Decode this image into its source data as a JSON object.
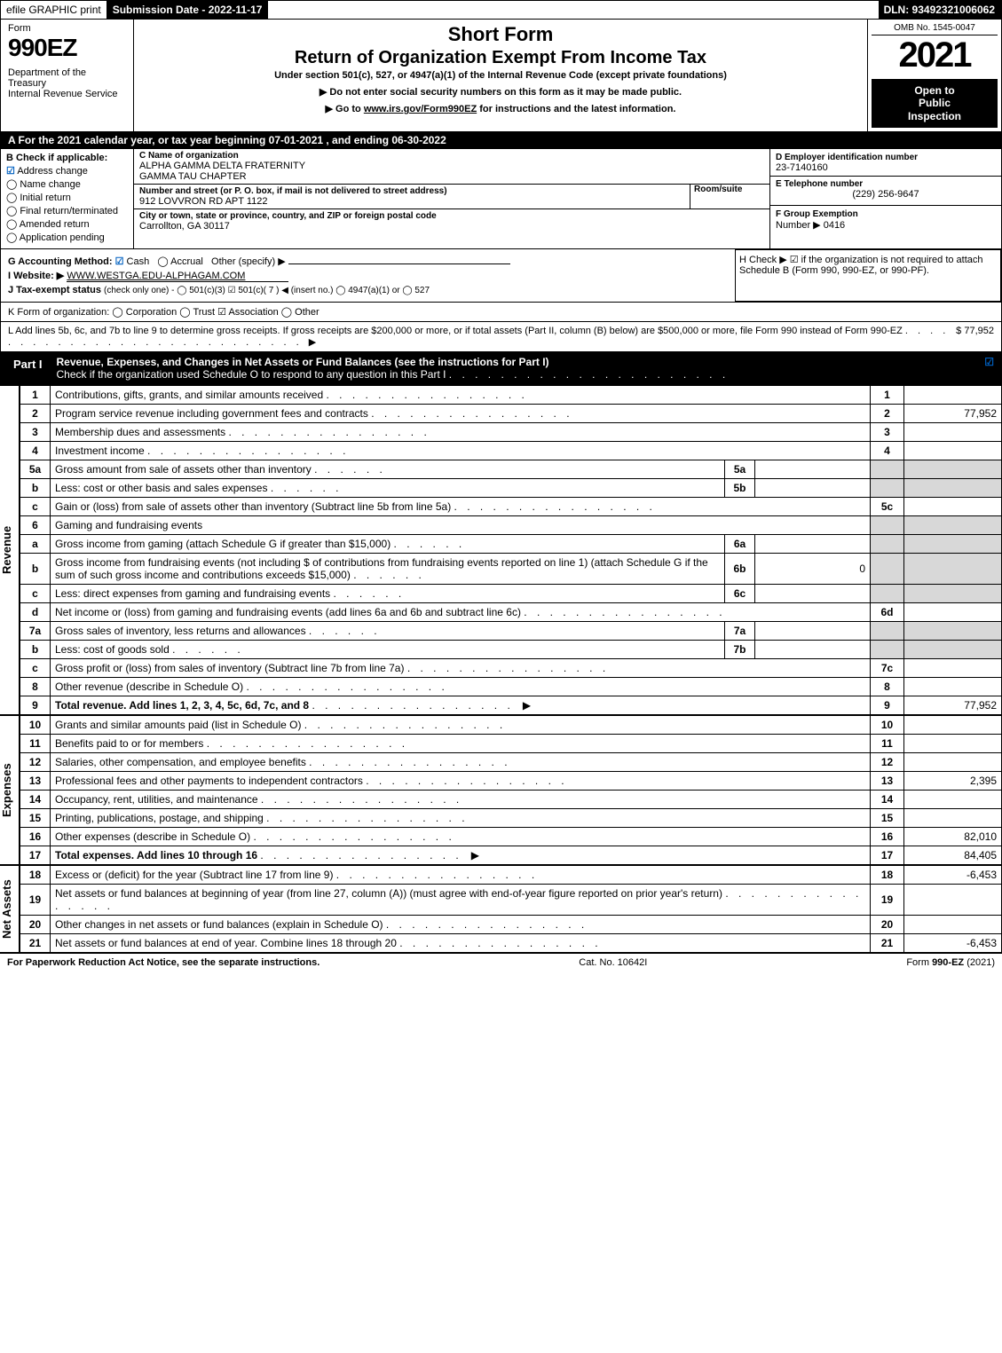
{
  "colors": {
    "black": "#000000",
    "white": "#ffffff",
    "grey_fill": "#d8d8d8",
    "check_blue": "#0060c0"
  },
  "topbar": {
    "efile": "efile GRAPHIC print",
    "submission": "Submission Date - 2022-11-17",
    "dln": "DLN: 93492321006062"
  },
  "header": {
    "form_word": "Form",
    "form_number": "990EZ",
    "dept": "Department of the Treasury\nInternal Revenue Service",
    "short_form": "Short Form",
    "return_title": "Return of Organization Exempt From Income Tax",
    "subtitle": "Under section 501(c), 527, or 4947(a)(1) of the Internal Revenue Code (except private foundations)",
    "notice1": "▶ Do not enter social security numbers on this form as it may be made public.",
    "notice2_pre": "▶ Go to ",
    "notice2_link": "www.irs.gov/Form990EZ",
    "notice2_post": " for instructions and the latest information.",
    "omb": "OMB No. 1545-0047",
    "year": "2021",
    "inspection": "Open to\nPublic\nInspection"
  },
  "rowA": {
    "text": "A  For the 2021 calendar year, or tax year beginning 07-01-2021 , and ending 06-30-2022"
  },
  "colB": {
    "header": "B  Check if applicable:",
    "items": [
      {
        "label": "Address change",
        "checked": true
      },
      {
        "label": "Name change",
        "checked": false
      },
      {
        "label": "Initial return",
        "checked": false
      },
      {
        "label": "Final return/terminated",
        "checked": false
      },
      {
        "label": "Amended return",
        "checked": false
      },
      {
        "label": "Application pending",
        "checked": false
      }
    ]
  },
  "colC": {
    "name_label": "C Name of organization",
    "name1": "ALPHA GAMMA DELTA FRATERNITY",
    "name2": "GAMMA TAU CHAPTER",
    "street_label": "Number and street (or P. O. box, if mail is not delivered to street address)",
    "room_label": "Room/suite",
    "street": "912 LOVVRON RD APT 1122",
    "city_label": "City or town, state or province, country, and ZIP or foreign postal code",
    "city": "Carrollton, GA  30117"
  },
  "colD": {
    "ein_label": "D Employer identification number",
    "ein": "23-7140160",
    "phone_label": "E Telephone number",
    "phone": "(229) 256-9647",
    "group_label": "F Group Exemption",
    "group_label2": "Number  ▶",
    "group": "0416"
  },
  "meta": {
    "g_label": "G Accounting Method:",
    "g_cash": "Cash",
    "g_accrual": "Accrual",
    "g_other": "Other (specify) ▶",
    "h_text": "H  Check ▶ ☑ if the organization is not required to attach Schedule B (Form 990, 990-EZ, or 990-PF).",
    "i_label": "I Website: ▶",
    "i_value": "WWW.WESTGA.EDU-ALPHAGAM.COM",
    "j_label": "J Tax-exempt status",
    "j_detail": "(check only one) - ◯ 501(c)(3)  ☑ 501(c)( 7 ) ◀ (insert no.)  ◯ 4947(a)(1) or  ◯ 527"
  },
  "lineK": "K Form of organization:   ◯ Corporation   ◯ Trust   ☑ Association   ◯ Other",
  "lineL": {
    "text": "L Add lines 5b, 6c, and 7b to line 9 to determine gross receipts. If gross receipts are $200,000 or more, or if total assets (Part II, column (B) below) are $500,000 or more, file Form 990 instead of Form 990-EZ",
    "dots": ". . . . . . . . . . . . . . . . . . . . . . . . . . . . ▶",
    "amount": "$ 77,952"
  },
  "partI": {
    "tag": "Part I",
    "title": "Revenue, Expenses, and Changes in Net Assets or Fund Balances (see the instructions for Part I)",
    "check_line": "Check if the organization used Schedule O to respond to any question in this Part I",
    "check_dots": ". . . . . . . . . . . . . . . . . . . . . .",
    "checked": "☑"
  },
  "revenue_rows": [
    {
      "ln": "1",
      "desc": "Contributions, gifts, grants, and similar amounts received",
      "rn": "1",
      "amt": ""
    },
    {
      "ln": "2",
      "desc": "Program service revenue including government fees and contracts",
      "rn": "2",
      "amt": "77,952"
    },
    {
      "ln": "3",
      "desc": "Membership dues and assessments",
      "rn": "3",
      "amt": ""
    },
    {
      "ln": "4",
      "desc": "Investment income",
      "rn": "4",
      "amt": ""
    },
    {
      "ln": "5a",
      "desc": "Gross amount from sale of assets other than inventory",
      "inner_ln": "5a",
      "inner_amt": "",
      "grey": true
    },
    {
      "ln": "b",
      "desc": "Less: cost or other basis and sales expenses",
      "inner_ln": "5b",
      "inner_amt": "",
      "grey": true
    },
    {
      "ln": "c",
      "desc": "Gain or (loss) from sale of assets other than inventory (Subtract line 5b from line 5a)",
      "rn": "5c",
      "amt": ""
    },
    {
      "ln": "6",
      "desc": "Gaming and fundraising events",
      "nobox": true
    },
    {
      "ln": "a",
      "desc": "Gross income from gaming (attach Schedule G if greater than $15,000)",
      "inner_ln": "6a",
      "inner_amt": "",
      "grey": true
    },
    {
      "ln": "b",
      "desc": "Gross income from fundraising events (not including $                      of contributions from fundraising events reported on line 1) (attach Schedule G if the sum of such gross income and contributions exceeds $15,000)",
      "inner_ln": "6b",
      "inner_amt": "0",
      "grey": true
    },
    {
      "ln": "c",
      "desc": "Less: direct expenses from gaming and fundraising events",
      "inner_ln": "6c",
      "inner_amt": "",
      "grey": true
    },
    {
      "ln": "d",
      "desc": "Net income or (loss) from gaming and fundraising events (add lines 6a and 6b and subtract line 6c)",
      "rn": "6d",
      "amt": ""
    },
    {
      "ln": "7a",
      "desc": "Gross sales of inventory, less returns and allowances",
      "inner_ln": "7a",
      "inner_amt": "",
      "grey": true
    },
    {
      "ln": "b",
      "desc": "Less: cost of goods sold",
      "inner_ln": "7b",
      "inner_amt": "",
      "grey": true
    },
    {
      "ln": "c",
      "desc": "Gross profit or (loss) from sales of inventory (Subtract line 7b from line 7a)",
      "rn": "7c",
      "amt": ""
    },
    {
      "ln": "8",
      "desc": "Other revenue (describe in Schedule O)",
      "rn": "8",
      "amt": ""
    },
    {
      "ln": "9",
      "desc": "Total revenue. Add lines 1, 2, 3, 4, 5c, 6d, 7c, and 8",
      "rn": "9",
      "amt": "77,952",
      "bold": true,
      "arrow": true
    }
  ],
  "expense_rows": [
    {
      "ln": "10",
      "desc": "Grants and similar amounts paid (list in Schedule O)",
      "rn": "10",
      "amt": ""
    },
    {
      "ln": "11",
      "desc": "Benefits paid to or for members",
      "rn": "11",
      "amt": ""
    },
    {
      "ln": "12",
      "desc": "Salaries, other compensation, and employee benefits",
      "rn": "12",
      "amt": ""
    },
    {
      "ln": "13",
      "desc": "Professional fees and other payments to independent contractors",
      "rn": "13",
      "amt": "2,395"
    },
    {
      "ln": "14",
      "desc": "Occupancy, rent, utilities, and maintenance",
      "rn": "14",
      "amt": ""
    },
    {
      "ln": "15",
      "desc": "Printing, publications, postage, and shipping",
      "rn": "15",
      "amt": ""
    },
    {
      "ln": "16",
      "desc": "Other expenses (describe in Schedule O)",
      "rn": "16",
      "amt": "82,010"
    },
    {
      "ln": "17",
      "desc": "Total expenses. Add lines 10 through 16",
      "rn": "17",
      "amt": "84,405",
      "bold": true,
      "arrow": true
    }
  ],
  "netassets_rows": [
    {
      "ln": "18",
      "desc": "Excess or (deficit) for the year (Subtract line 17 from line 9)",
      "rn": "18",
      "amt": "-6,453"
    },
    {
      "ln": "19",
      "desc": "Net assets or fund balances at beginning of year (from line 27, column (A)) (must agree with end-of-year figure reported on prior year's return)",
      "rn": "19",
      "amt": ""
    },
    {
      "ln": "20",
      "desc": "Other changes in net assets or fund balances (explain in Schedule O)",
      "rn": "20",
      "amt": ""
    },
    {
      "ln": "21",
      "desc": "Net assets or fund balances at end of year. Combine lines 18 through 20",
      "rn": "21",
      "amt": "-6,453"
    }
  ],
  "side_labels": {
    "revenue": "Revenue",
    "expenses": "Expenses",
    "netassets": "Net Assets"
  },
  "footer": {
    "left": "For Paperwork Reduction Act Notice, see the separate instructions.",
    "center": "Cat. No. 10642I",
    "right": "Form 990-EZ (2021)"
  }
}
